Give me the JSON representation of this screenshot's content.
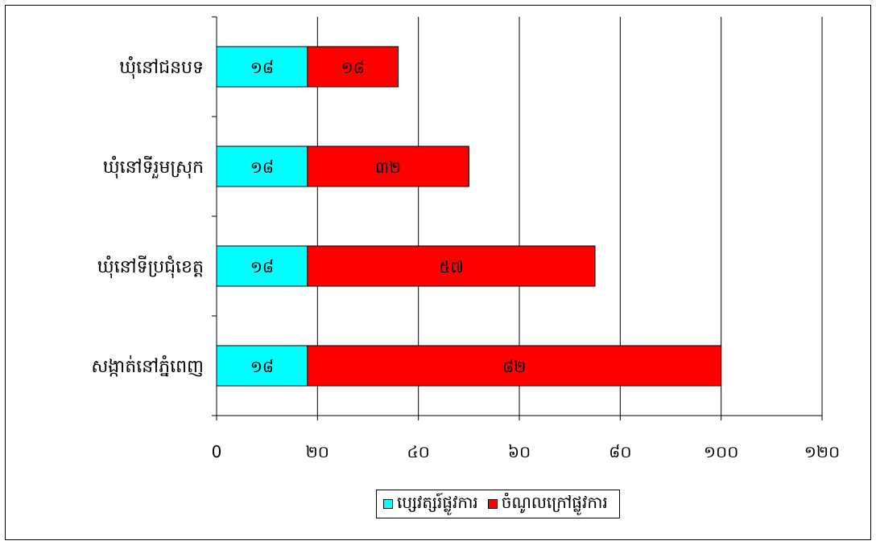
{
  "chart_data": {
    "type": "bar",
    "orientation": "horizontal",
    "stacked": true,
    "categories": [
      "ឃុំនៅជនបទ",
      "ឃុំនៅទីរួមស្រុក",
      "ឃុំនៅទីប្រជុំខេត្ត",
      "សង្កាត់នៅភ្នំពេញ"
    ],
    "series": [
      {
        "name": "ប្សេវត្សរ៍ផ្លូវការ",
        "color": "#00ffff",
        "values": [
          18,
          18,
          18,
          18
        ],
        "labels": [
          "១៨",
          "១៨",
          "១៨",
          "១៨"
        ]
      },
      {
        "name": "ចំណូលក្រៅផ្លូវការ",
        "color": "#ff0000",
        "values": [
          18,
          32,
          57,
          82
        ],
        "labels": [
          "១៨",
          "៣២",
          "៥៧",
          "៨២"
        ]
      }
    ],
    "xlim": [
      0,
      120
    ],
    "xticks": [
      0,
      20,
      40,
      60,
      80,
      100,
      120
    ],
    "xtick_labels": [
      "0",
      "២០",
      "៤០",
      "៦០",
      "៨០",
      "១០០",
      "១២០"
    ],
    "grid": "vertical",
    "legend_position": "bottom"
  }
}
